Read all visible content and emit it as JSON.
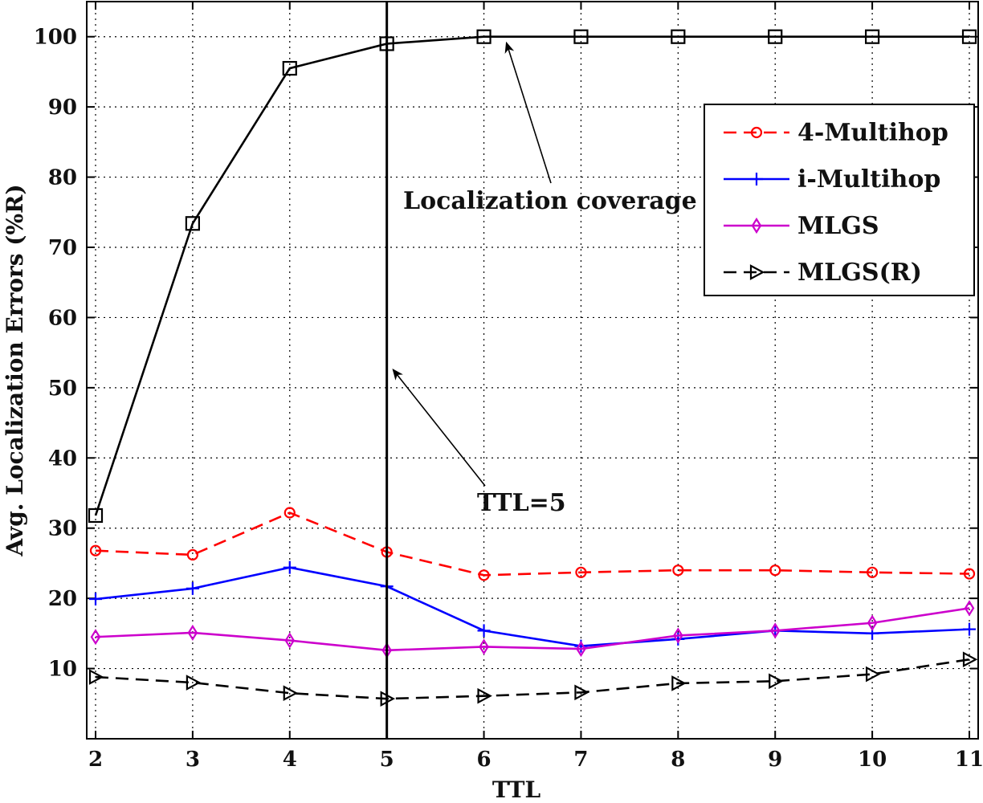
{
  "chart_data": {
    "type": "line",
    "title": "",
    "xlabel": "TTL",
    "ylabel": "Avg. Localization Errors (%R)",
    "xlim": [
      2,
      11
    ],
    "ylim": [
      0,
      105
    ],
    "x": [
      2,
      3,
      4,
      5,
      6,
      7,
      8,
      9,
      10,
      11
    ],
    "xticks": [
      "2",
      "3",
      "4",
      "5",
      "6",
      "7",
      "8",
      "9",
      "10",
      "11"
    ],
    "yticks": [
      10,
      20,
      30,
      40,
      50,
      60,
      70,
      80,
      90,
      100
    ],
    "grid": true,
    "legend_position": "top-right",
    "series": [
      {
        "name": "4-Multihop",
        "color": "#ff0000",
        "dash": "dashed",
        "marker": "circle",
        "values": [
          26.8,
          26.2,
          32.2,
          26.6,
          23.3,
          23.7,
          24.0,
          24.0,
          23.7,
          23.5
        ]
      },
      {
        "name": "i-Multihop",
        "color": "#0000ff",
        "dash": "solid",
        "marker": "plus",
        "values": [
          19.9,
          21.4,
          24.4,
          21.7,
          15.4,
          13.2,
          14.2,
          15.4,
          15.0,
          15.6
        ]
      },
      {
        "name": "MLGS",
        "color": "#cc00cc",
        "dash": "solid",
        "marker": "diamond",
        "values": [
          14.5,
          15.1,
          14.0,
          12.6,
          13.1,
          12.8,
          14.7,
          15.4,
          16.5,
          18.6
        ]
      },
      {
        "name": "MLGS(R)",
        "color": "#000000",
        "dash": "dashed",
        "marker": "triangle-right",
        "values": [
          8.8,
          8.0,
          6.5,
          5.7,
          6.1,
          6.6,
          7.9,
          8.2,
          9.2,
          11.3
        ]
      },
      {
        "name": "Localization coverage",
        "color": "#000000",
        "dash": "solid",
        "marker": "square",
        "in_legend": false,
        "values": [
          31.8,
          73.4,
          95.5,
          99.0,
          100,
          100,
          100,
          100,
          100,
          100
        ]
      }
    ],
    "annotations": [
      {
        "text": "Localization coverage",
        "points_to_x": 6.2,
        "points_to_y": 100
      },
      {
        "text": "TTL=5",
        "points_to_x": 5.05,
        "points_to_y": 53,
        "vertical_line_x": 5
      }
    ]
  }
}
